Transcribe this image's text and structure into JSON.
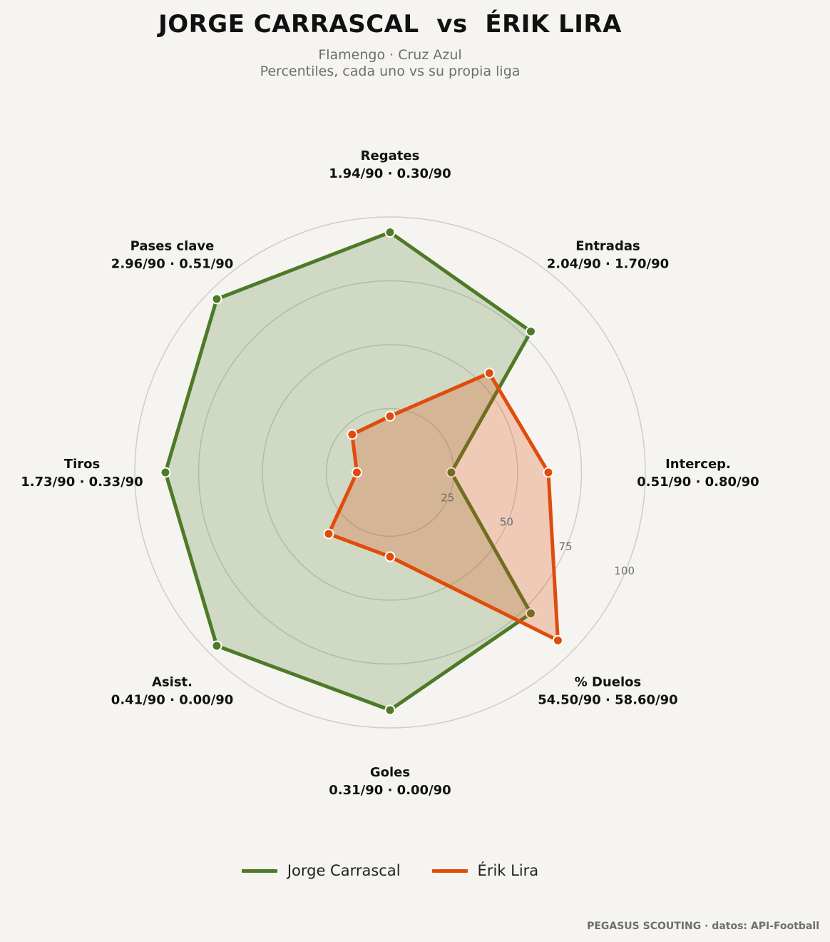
{
  "header": {
    "title": "JORGE CARRASCAL  vs  ÉRIK LIRA",
    "subtitle_line1": "Flamengo · Cruz Azul",
    "subtitle_line2": "Percentiles, cada uno vs su propia liga"
  },
  "footer": {
    "credit": "PEGASUS SCOUTING · datos: API-Football"
  },
  "colors": {
    "series1": "#4e7a27",
    "series2": "#e04c0c",
    "grid": "#cfcdc8",
    "background": "#f5f4f0"
  },
  "chart_data": {
    "type": "radar",
    "rlim": [
      0,
      100
    ],
    "rticks": [
      25,
      50,
      75,
      100
    ],
    "axes": [
      {
        "name": "Regates",
        "values_label": "1.94/90 · 0.30/90"
      },
      {
        "name": "Entradas",
        "values_label": "2.04/90 · 1.70/90"
      },
      {
        "name": "Intercep.",
        "values_label": "0.51/90 · 0.80/90"
      },
      {
        "name": "% Duelos",
        "values_label": "54.50/90 · 58.60/90"
      },
      {
        "name": "Goles",
        "values_label": "0.31/90 · 0.00/90"
      },
      {
        "name": "Asist.",
        "values_label": "0.41/90 · 0.00/90"
      },
      {
        "name": "Tiros",
        "values_label": "1.73/90 · 0.33/90"
      },
      {
        "name": "Pases clave",
        "values_label": "2.96/90 · 0.51/90"
      }
    ],
    "series": [
      {
        "name": "Jorge Carrascal",
        "color": "#4e7a27",
        "values": [
          94,
          78,
          24,
          78,
          93,
          96,
          88,
          96
        ]
      },
      {
        "name": "Érik Lira",
        "color": "#e04c0c",
        "values": [
          22,
          55,
          62,
          93,
          33,
          34,
          13,
          21
        ]
      }
    ],
    "legend_position": "bottom-center"
  }
}
